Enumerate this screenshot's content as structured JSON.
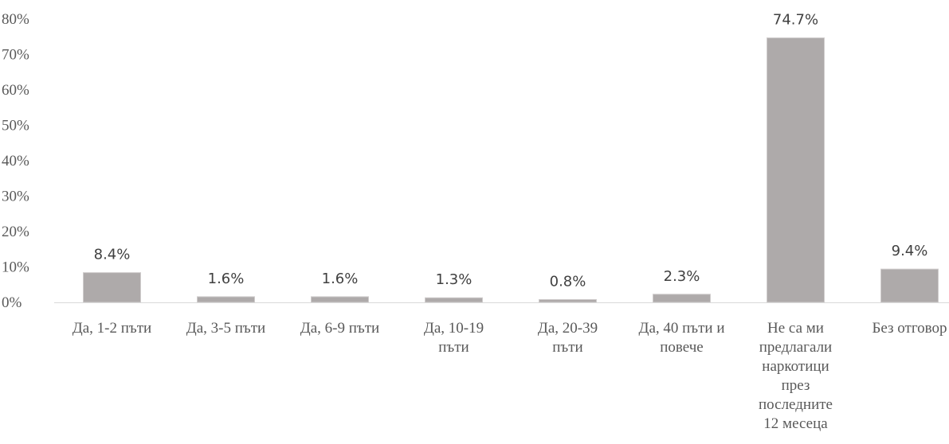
{
  "chart_data": {
    "type": "bar",
    "title": "",
    "xlabel": "",
    "ylabel": "",
    "ylim": [
      0,
      80
    ],
    "y_ticks": [
      "0%",
      "10%",
      "20%",
      "30%",
      "40%",
      "50%",
      "60%",
      "70%",
      "80%"
    ],
    "y_tick_values": [
      0,
      10,
      20,
      30,
      40,
      50,
      60,
      70,
      80
    ],
    "grid": false,
    "legend": "none",
    "bar_color": "#aeaaaa",
    "categories": [
      [
        "Да, 1-2 пъти"
      ],
      [
        "Да, 3-5 пъти"
      ],
      [
        "Да, 6-9 пъти"
      ],
      [
        "Да, 10-19",
        "пъти"
      ],
      [
        "Да, 20-39",
        "пъти"
      ],
      [
        "Да, 40 пъти и",
        "повече"
      ],
      [
        "Не са ми",
        "предлагали",
        "наркотици",
        "през",
        "последните",
        "12 месеца"
      ],
      [
        "Без отговор"
      ]
    ],
    "values": [
      8.4,
      1.6,
      1.6,
      1.3,
      0.8,
      2.3,
      74.7,
      9.4
    ],
    "data_labels": [
      "8.4%",
      "1.6%",
      "1.6%",
      "1.3%",
      "0.8%",
      "2.3%",
      "74.7%",
      "9.4%"
    ]
  }
}
